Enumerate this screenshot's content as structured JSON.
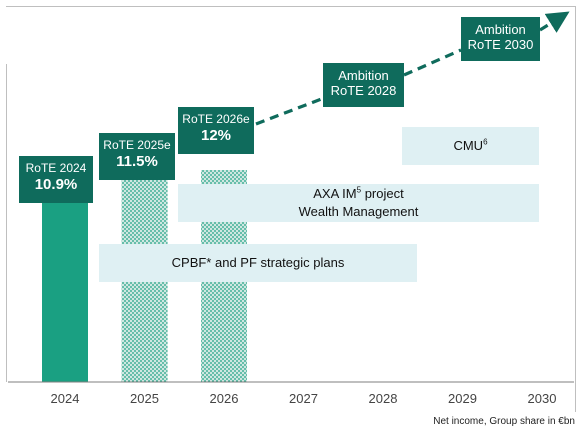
{
  "chart_data": {
    "type": "bar",
    "categories": [
      "2024",
      "2025",
      "2026",
      "2027",
      "2028",
      "2029",
      "2030"
    ],
    "series": [
      {
        "values": [
          10.9,
          11.5,
          12.0,
          null,
          null,
          null,
          null
        ]
      }
    ],
    "bar_styles": [
      "solid",
      "hatched",
      "hatched",
      null,
      null,
      null,
      null
    ],
    "callouts": [
      {
        "year": "2024",
        "label": "RoTE 2024",
        "value": "10.9%"
      },
      {
        "year": "2025",
        "label": "RoTE 2025e",
        "value": "11.5%"
      },
      {
        "year": "2026",
        "label": "RoTE 2026e",
        "value": "12%"
      }
    ],
    "ambitions": [
      {
        "year": "2028",
        "label_line1": "Ambition",
        "label_line2": "RoTE 2028"
      },
      {
        "year": "2030",
        "label_line1": "Ambition",
        "label_line2": "RoTE 2030"
      }
    ],
    "initiatives": [
      {
        "label": "CPBF* and PF strategic plans",
        "sup": "",
        "label_after": "",
        "label_line2": ""
      },
      {
        "label": "AXA IM",
        "sup": "5",
        "label_after": " project",
        "label_line2": "Wealth Management"
      },
      {
        "label": "CMU",
        "sup": "6",
        "label_after": "",
        "label_line2": ""
      }
    ],
    "footnote": "Net income, Group share in €bn",
    "colors": {
      "bar": "#1aa082",
      "hatch_bg": "#cfe7e1",
      "callout": "#0f6b5c",
      "initiative": "#dff0f3",
      "trend": "#0f6b5c"
    }
  }
}
